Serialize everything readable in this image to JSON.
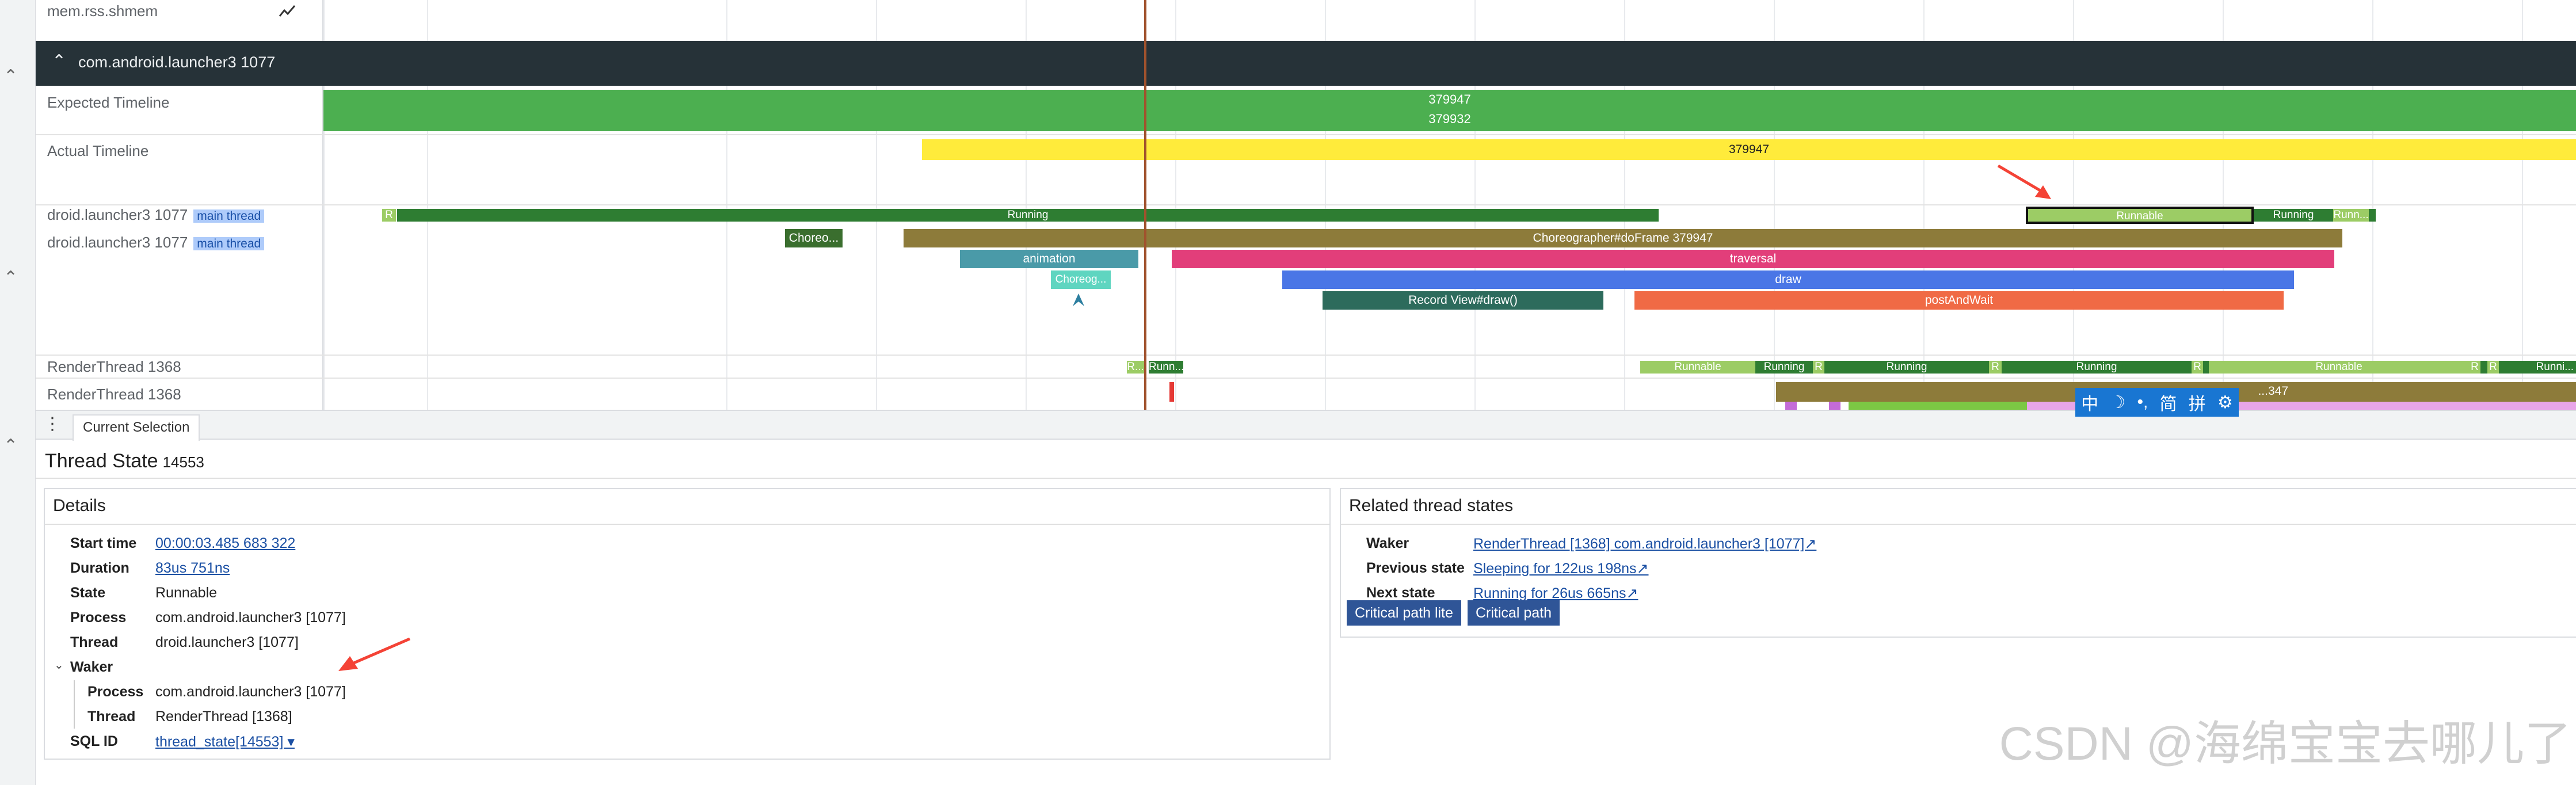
{
  "tracks": {
    "mem_label": "mem.rss.shmem",
    "process_header": "com.android.launcher3 1077",
    "expected_timeline": "Expected Timeline",
    "actual_timeline": "Actual Timeline",
    "main_thread_1": "droid.launcher3 1077",
    "main_thread_2": "droid.launcher3 1077",
    "main_tag": "main thread",
    "render_thread_1": "RenderThread 1368",
    "render_thread_2": "RenderThread 1368"
  },
  "slices": {
    "expected_a": "379947",
    "expected_b": "379932",
    "actual": "379947",
    "thread_state_r": "R",
    "thread_state_running": "Running",
    "thread_state_runnable": "Runnable",
    "thread_state_running2": "Running",
    "thread_state_runn": "Runn...",
    "choreo_small": "Choreo...",
    "do_frame": "Choreographer#doFrame 379947",
    "animation": "animation",
    "traversal": "traversal",
    "choreog": "Choreog...",
    "draw": "draw",
    "record_view": "Record View#draw()",
    "post_and_wait": "postAndWait",
    "rt_r": "R...",
    "rt_runn": "Runn...",
    "rt_runnable_1": "Runnable",
    "rt_running_1": "Running",
    "rt_r2": "R",
    "rt_running_2": "Running",
    "rt_r3": "R",
    "rt_running_3": "Running",
    "rt_r4": "R",
    "rt_runnable_2": "Runnable",
    "rt_r5": "R",
    "rt_r6": "R",
    "rt_running_4": "Runni...",
    "rt2_frame": "...347"
  },
  "ime": {
    "items": [
      "中",
      "☽",
      "•,",
      "简",
      "拼",
      "⚙"
    ]
  },
  "panel": {
    "tab_label": "Current Selection",
    "title": "Thread State",
    "title_id": "14553",
    "details": {
      "title": "Details",
      "start_time_k": "Start time",
      "start_time_v": "00:00:03.485 683 322",
      "duration_k": "Duration",
      "duration_v": "83us 751ns",
      "state_k": "State",
      "state_v": "Runnable",
      "process_k": "Process",
      "process_v": "com.android.launcher3 [1077]",
      "thread_k": "Thread",
      "thread_v": "droid.launcher3 [1077]",
      "waker_k": "Waker",
      "waker_process_k": "Process",
      "waker_process_v": "com.android.launcher3 [1077]",
      "waker_thread_k": "Thread",
      "waker_thread_v": "RenderThread [1368]",
      "sql_k": "SQL ID",
      "sql_v": "thread_state[14553] ▾"
    },
    "related": {
      "title": "Related thread states",
      "waker_k": "Waker",
      "waker_v": "RenderThread [1368] com.android.launcher3 [1077]↗",
      "prev_k": "Previous state",
      "prev_v": "Sleeping for 122us 198ns↗",
      "next_k": "Next state",
      "next_v": "Running for 26us 665ns↗",
      "btn_lite": "Critical path lite",
      "btn_path": "Critical path"
    }
  },
  "watermark": "CSDN @海绵宝宝去哪儿了",
  "colors": {
    "expected": "#4caf50",
    "actual": "#ffeb3b",
    "running": "#2e7d32",
    "runnable": "#9ccc65",
    "do_frame": "#8d7b3a",
    "animation": "#4a9aa8",
    "traversal": "#e23e7a",
    "draw": "#4a76e6",
    "record": "#2d6b5c",
    "post": "#f06a45",
    "choreo_small": "#3a6e2e",
    "choreog": "#5fd5c0",
    "arrow": "#f44336"
  }
}
